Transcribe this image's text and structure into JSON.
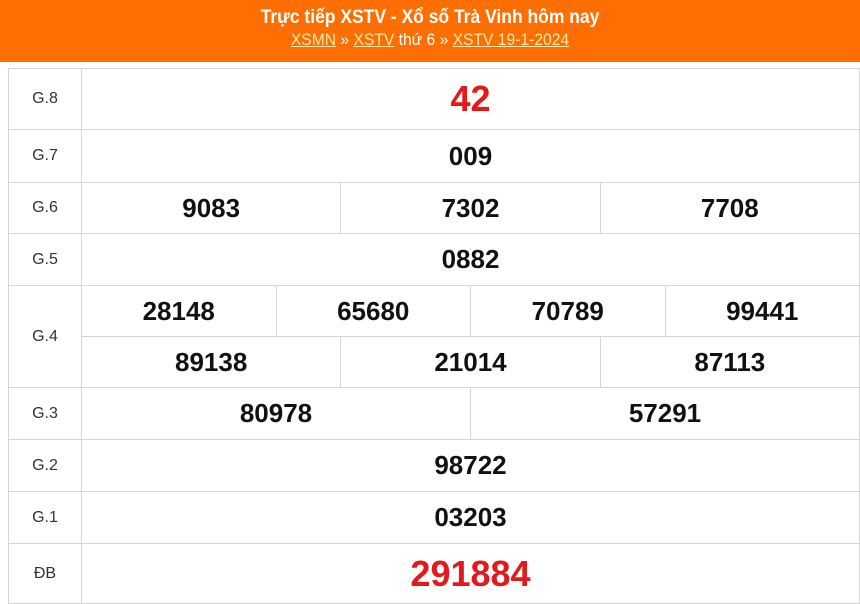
{
  "header": {
    "title": "Trực tiếp XSTV - Xổ số Trà Vinh hôm nay",
    "crumb1": "XSMN",
    "sep1": " » ",
    "crumb2": "XSTV",
    "crumb2_suffix": " thứ 6",
    "sep2": " » ",
    "crumb3": "XSTV 19-1-2024"
  },
  "prizes": [
    {
      "label": "G.8",
      "numbers": [
        "42"
      ]
    },
    {
      "label": "G.7",
      "numbers": [
        "009"
      ]
    },
    {
      "label": "G.6",
      "numbers": [
        "9083",
        "7302",
        "7708"
      ]
    },
    {
      "label": "G.5",
      "numbers": [
        "0882"
      ]
    },
    {
      "label": "G.4",
      "numbers": [
        "28148",
        "65680",
        "70789",
        "99441",
        "89138",
        "21014",
        "87113"
      ]
    },
    {
      "label": "G.3",
      "numbers": [
        "80978",
        "57291"
      ]
    },
    {
      "label": "G.2",
      "numbers": [
        "98722"
      ]
    },
    {
      "label": "G.1",
      "numbers": [
        "03203"
      ]
    },
    {
      "label": "ĐB",
      "numbers": [
        "291884"
      ]
    }
  ],
  "colors": {
    "header_bg": "#ff6e00",
    "highlight": "#e3191b"
  }
}
